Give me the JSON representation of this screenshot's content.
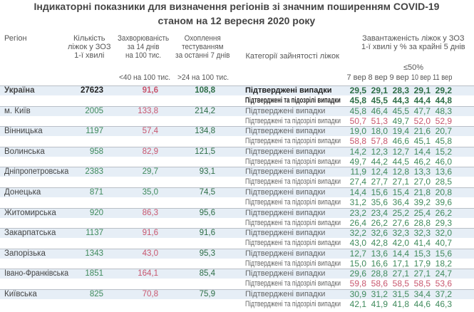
{
  "title": [
    "Індикаторні показники для визначення регіонів зі значним поширенням COVID-19",
    "станом на 12 вересня 2020 року"
  ],
  "headers": {
    "region": "Регіон",
    "beds": [
      "Кількість",
      "ліжок у ЗОЗ",
      "1-ї хвилі"
    ],
    "morbidity": [
      "Захворюваність",
      "за 14 днів",
      "на 100 тис."
    ],
    "testing": [
      "Охоплення",
      "тестуванням",
      "за останні 7 днів"
    ],
    "category": "Категорії зайнятості ліжок",
    "load": [
      "Завантаженість ліжок у ЗОЗ",
      "1-ї хвилі у % за крайні 5 днів"
    ],
    "morbidity_threshold": "<40 на 100 тис.",
    "testing_threshold": ">24 на 100 тис.",
    "load_threshold": "≤50%",
    "days": [
      "7 вер",
      "8 вер",
      "9 вер",
      "10 вер",
      "11 вер"
    ]
  },
  "categories": [
    "Підтверджені випадки",
    "Підтверджені та підозрілі випадки"
  ],
  "colors": {
    "green": "#3f8a5c",
    "red": "#c8566e",
    "dark_green": "#2e6e47",
    "band": "#e6eef6"
  },
  "rows": [
    {
      "name": "Україна",
      "beds": "27623",
      "morbidity": "91,6",
      "morbidity_color": "r",
      "testing": "108,8",
      "confirmed": [
        "29,5",
        "29,1",
        "28,3",
        "29,1",
        "29,2"
      ],
      "confirmed_colors": [
        "g",
        "g",
        "g",
        "g",
        "g"
      ],
      "suspected": [
        "45,8",
        "45,5",
        "44,3",
        "44,4",
        "44,8"
      ],
      "suspected_colors": [
        "g",
        "g",
        "g",
        "g",
        "g"
      ]
    },
    {
      "name": "м. Київ",
      "beds": "2005",
      "morbidity": "133,8",
      "morbidity_color": "r",
      "testing": "214,2",
      "confirmed": [
        "45,8",
        "46,4",
        "45,5",
        "47,7",
        "48,3"
      ],
      "confirmed_colors": [
        "g",
        "g",
        "g",
        "g",
        "g"
      ],
      "suspected": [
        "50,7",
        "51,3",
        "49,7",
        "52,0",
        "52,9"
      ],
      "suspected_colors": [
        "r",
        "r",
        "g",
        "r",
        "r"
      ]
    },
    {
      "name": "Вінницька",
      "beds": "1197",
      "morbidity": "57,4",
      "morbidity_color": "r",
      "testing": "134,8",
      "confirmed": [
        "19,0",
        "18,0",
        "19,4",
        "21,6",
        "20,7"
      ],
      "confirmed_colors": [
        "g",
        "g",
        "g",
        "g",
        "g"
      ],
      "suspected": [
        "58,8",
        "57,8",
        "46,6",
        "45,1",
        "45,8"
      ],
      "suspected_colors": [
        "r",
        "r",
        "g",
        "g",
        "g"
      ]
    },
    {
      "name": "Волинська",
      "beds": "958",
      "morbidity": "82,9",
      "morbidity_color": "r",
      "testing": "121,5",
      "confirmed": [
        "14,2",
        "12,3",
        "12,7",
        "14,4",
        "15,2"
      ],
      "confirmed_colors": [
        "g",
        "g",
        "g",
        "g",
        "g"
      ],
      "suspected": [
        "49,7",
        "44,2",
        "44,5",
        "46,2",
        "46,0"
      ],
      "suspected_colors": [
        "g",
        "g",
        "g",
        "g",
        "g"
      ]
    },
    {
      "name": "Дніпропетровська",
      "beds": "2383",
      "morbidity": "29,7",
      "morbidity_color": "g",
      "testing": "93,1",
      "confirmed": [
        "11,9",
        "12,4",
        "12,8",
        "13,3",
        "13,6"
      ],
      "confirmed_colors": [
        "g",
        "g",
        "g",
        "g",
        "g"
      ],
      "suspected": [
        "27,4",
        "27,7",
        "27,1",
        "27,0",
        "28,5"
      ],
      "suspected_colors": [
        "g",
        "g",
        "g",
        "g",
        "g"
      ]
    },
    {
      "name": "Донецька",
      "beds": "871",
      "morbidity": "35,0",
      "morbidity_color": "g",
      "testing": "74,5",
      "confirmed": [
        "14,4",
        "15,6",
        "15,4",
        "21,8",
        "20,8"
      ],
      "confirmed_colors": [
        "g",
        "g",
        "g",
        "g",
        "g"
      ],
      "suspected": [
        "31,2",
        "35,6",
        "36,4",
        "39,2",
        "39,6"
      ],
      "suspected_colors": [
        "g",
        "g",
        "g",
        "g",
        "g"
      ]
    },
    {
      "name": "Житомирська",
      "beds": "920",
      "morbidity": "86,3",
      "morbidity_color": "r",
      "testing": "95,6",
      "confirmed": [
        "23,2",
        "23,4",
        "25,2",
        "25,4",
        "26,2"
      ],
      "confirmed_colors": [
        "g",
        "g",
        "g",
        "g",
        "g"
      ],
      "suspected": [
        "26,4",
        "26,2",
        "27,6",
        "28,8",
        "29,3"
      ],
      "suspected_colors": [
        "g",
        "g",
        "g",
        "g",
        "g"
      ]
    },
    {
      "name": "Закарпатська",
      "beds": "1137",
      "morbidity": "91,6",
      "morbidity_color": "r",
      "testing": "91,6",
      "confirmed": [
        "32,2",
        "32,6",
        "32,3",
        "32,3",
        "32,0"
      ],
      "confirmed_colors": [
        "g",
        "g",
        "g",
        "g",
        "g"
      ],
      "suspected": [
        "43,0",
        "42,8",
        "42,0",
        "41,4",
        "40,7"
      ],
      "suspected_colors": [
        "g",
        "g",
        "g",
        "g",
        "g"
      ]
    },
    {
      "name": "Запорізька",
      "beds": "1343",
      "morbidity": "43,0",
      "morbidity_color": "r",
      "testing": "95,3",
      "confirmed": [
        "12,7",
        "13,6",
        "14,4",
        "15,3",
        "15,6"
      ],
      "confirmed_colors": [
        "g",
        "g",
        "g",
        "g",
        "g"
      ],
      "suspected": [
        "15,0",
        "16,6",
        "17,1",
        "17,9",
        "18,2"
      ],
      "suspected_colors": [
        "g",
        "g",
        "g",
        "g",
        "g"
      ]
    },
    {
      "name": "Івано-Франківська",
      "beds": "1851",
      "morbidity": "164,1",
      "morbidity_color": "r",
      "testing": "85,4",
      "confirmed": [
        "29,6",
        "28,8",
        "27,1",
        "27,1",
        "24,7"
      ],
      "confirmed_colors": [
        "g",
        "g",
        "g",
        "g",
        "g"
      ],
      "suspected": [
        "59,8",
        "58,6",
        "58,5",
        "58,5",
        "53,6"
      ],
      "suspected_colors": [
        "r",
        "r",
        "r",
        "r",
        "r"
      ]
    },
    {
      "name": "Київська",
      "beds": "825",
      "morbidity": "70,8",
      "morbidity_color": "r",
      "testing": "75,9",
      "confirmed": [
        "30,9",
        "31,2",
        "31,5",
        "34,4",
        "37,2"
      ],
      "confirmed_colors": [
        "g",
        "g",
        "g",
        "g",
        "g"
      ],
      "suspected": [
        "42,1",
        "41,9",
        "41,8",
        "44,6",
        "46,3"
      ],
      "suspected_colors": [
        "g",
        "g",
        "g",
        "g",
        "g"
      ]
    }
  ]
}
